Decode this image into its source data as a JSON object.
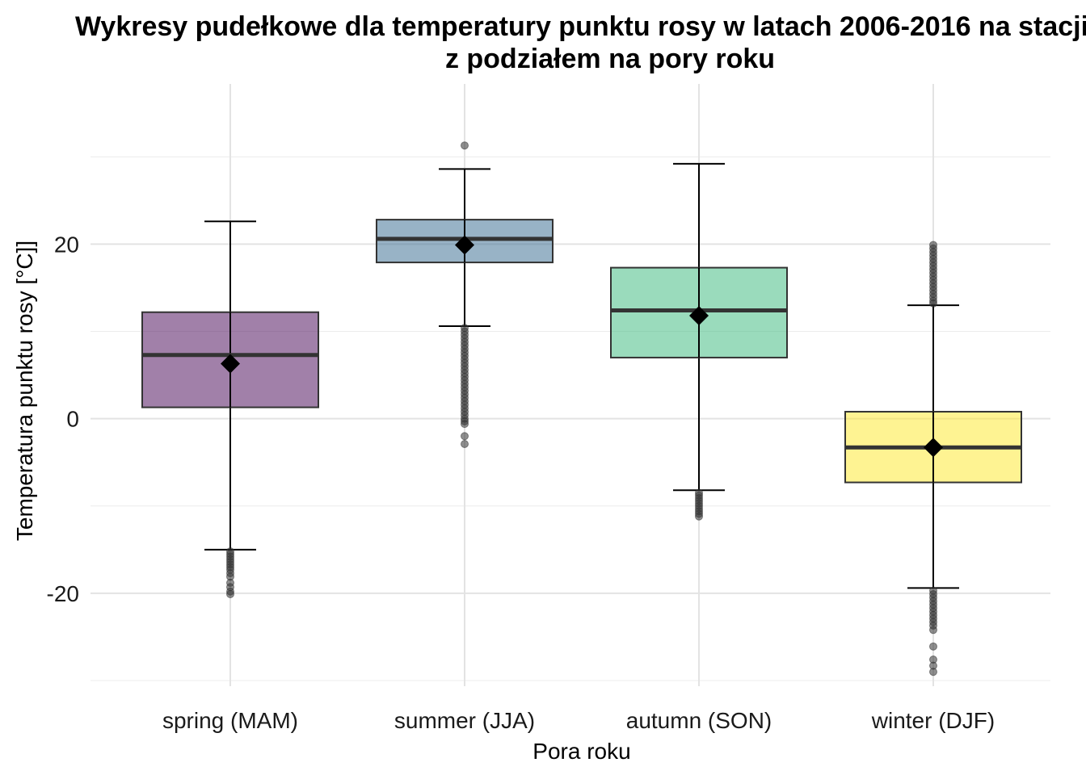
{
  "chart_data": {
    "type": "boxplot",
    "title_lines": [
      "Wykresy pudełkowe dla temperatury punktu rosy w latach 2006-2016 na stacji",
      "z podziałem na pory roku"
    ],
    "xlabel": "Pora roku",
    "ylabel": "Temperatura punktu rosy [°C]]",
    "categories": [
      "spring (MAM)",
      "summer (JJA)",
      "autumn (SON)",
      "winter (DJF)"
    ],
    "ylim": [
      -30.5,
      34
    ],
    "y_ticks": [
      -20,
      0,
      20
    ],
    "y_tick_labels": [
      "-20",
      "0",
      "20"
    ],
    "grid": true,
    "legend": "none",
    "series": [
      {
        "category": "spring (MAM)",
        "color": "#440154",
        "whisker_low": -15.0,
        "q1": 1.3,
        "median": 7.3,
        "q3": 12.2,
        "whisker_high": 22.6,
        "mean": 6.3,
        "outliers": [
          -15.2,
          -15.5,
          -15.8,
          -16.1,
          -16.4,
          -16.7,
          -17.0,
          -17.3,
          -17.7,
          -18.1,
          -18.8,
          -19.3,
          -19.8,
          -20.1
        ]
      },
      {
        "category": "summer (JJA)",
        "color": "#31688e",
        "whisker_low": 10.6,
        "q1": 17.9,
        "median": 20.6,
        "q3": 22.8,
        "whisker_high": 28.6,
        "mean": 19.9,
        "outliers": [
          31.3,
          10.4,
          10.0,
          9.6,
          9.2,
          8.8,
          8.4,
          8.0,
          7.6,
          7.2,
          6.8,
          6.4,
          6.0,
          5.6,
          5.2,
          4.8,
          4.4,
          4.0,
          3.6,
          3.2,
          2.8,
          2.4,
          2.0,
          1.6,
          1.2,
          0.8,
          0.4,
          0.0,
          -0.3,
          -0.6,
          -2.0,
          -2.9
        ]
      },
      {
        "category": "autumn (SON)",
        "color": "#35b779",
        "whisker_low": -8.2,
        "q1": 7.0,
        "median": 12.4,
        "q3": 17.3,
        "whisker_high": 29.2,
        "mean": 11.8,
        "outliers": [
          -8.5,
          -8.8,
          -9.1,
          -9.4,
          -9.7,
          -10.0,
          -10.3,
          -10.6,
          -10.9,
          -11.2
        ]
      },
      {
        "category": "winter (DJF)",
        "color": "#fde725",
        "whisker_low": -19.4,
        "q1": -7.3,
        "median": -3.3,
        "q3": 0.8,
        "whisker_high": 13.0,
        "mean": -3.3,
        "outliers": [
          19.9,
          19.5,
          19.1,
          18.7,
          18.3,
          17.9,
          17.5,
          17.1,
          16.7,
          16.3,
          15.9,
          15.5,
          15.1,
          14.7,
          14.3,
          13.9,
          13.5,
          13.2,
          -19.7,
          -20.1,
          -20.5,
          -20.9,
          -21.3,
          -21.7,
          -22.1,
          -22.5,
          -22.9,
          -23.3,
          -23.7,
          -24.2,
          -26.1,
          -27.6,
          -28.3,
          -29.0
        ]
      }
    ]
  }
}
